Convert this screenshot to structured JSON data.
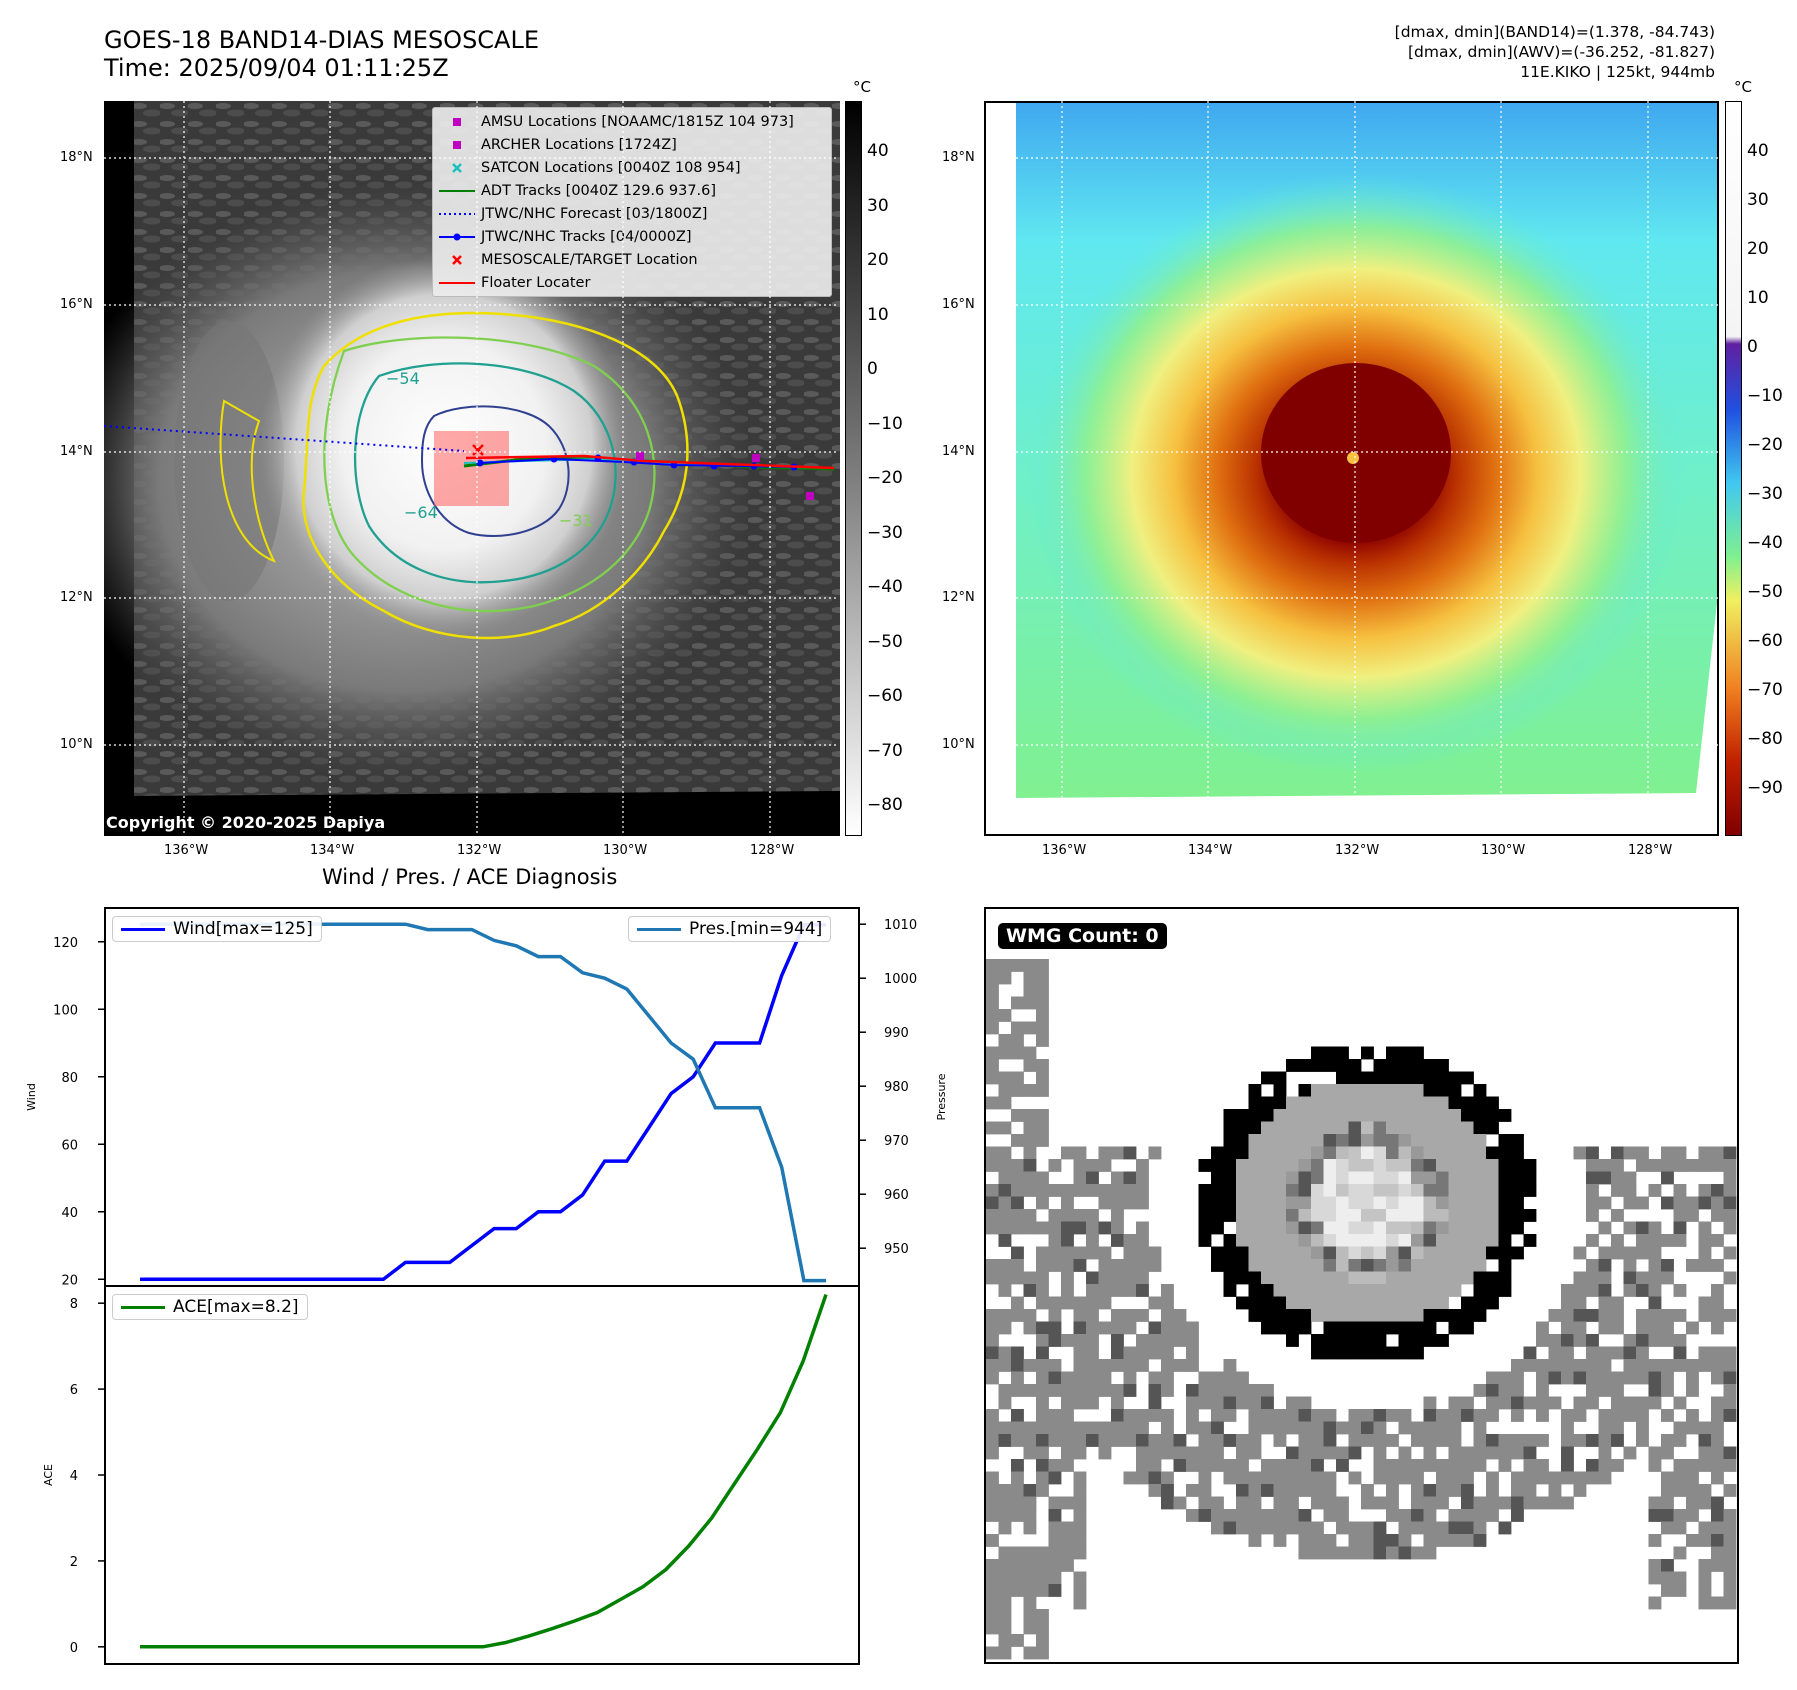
{
  "header": {
    "title_line1": "GOES-18 BAND14-DIAS MESOSCALE",
    "title_line2": "Time: 2025/09/04 01:11:25Z",
    "right_line1": "[dmax, dmin](BAND14)=(1.378, -84.743)",
    "right_line2": "[dmax, dmin](AWV)=(-36.252, -81.827)",
    "right_line3": "11E.KIKO | 125kt, 944mb"
  },
  "map_axes": {
    "lat_labels": [
      "18°N",
      "16°N",
      "14°N",
      "12°N",
      "10°N"
    ],
    "lon_labels": [
      "136°W",
      "134°W",
      "132°W",
      "130°W",
      "128°W"
    ]
  },
  "ir_panel": {
    "colorbar_unit": "°C",
    "colorbar_ticks": [
      "40",
      "30",
      "20",
      "10",
      "0",
      "−10",
      "−20",
      "−30",
      "−40",
      "−50",
      "−60",
      "−70",
      "−80"
    ],
    "copyright": "Copyright © 2020-2025 Dapiya",
    "contour_labels": [
      "−54",
      "−64",
      "−31"
    ],
    "legend": [
      {
        "label": "AMSU Locations [NOAAMC/1815Z 104 973]",
        "symbol": "square",
        "color": "#c000c0"
      },
      {
        "label": "ARCHER Locations [1724Z]",
        "symbol": "square",
        "color": "#c000c0"
      },
      {
        "label": "SATCON Locations [0040Z 108 954]",
        "symbol": "x",
        "color": "#18c0c0"
      },
      {
        "label": "ADT Tracks [0040Z 129.6 937.6]",
        "symbol": "line",
        "color": "#008000"
      },
      {
        "label": "JTWC/NHC Forecast [03/1800Z]",
        "symbol": "dotted",
        "color": "#0000ff"
      },
      {
        "label": "JTWC/NHC Tracks [04/0000Z]",
        "symbol": "dotline",
        "color": "#0000ff"
      },
      {
        "label": "MESOSCALE/TARGET Location",
        "symbol": "x",
        "color": "#ff0000"
      },
      {
        "label": "Floater Locater",
        "symbol": "line",
        "color": "#ff0000"
      }
    ]
  },
  "awv_panel": {
    "colorbar_unit": "°C",
    "colorbar_ticks": [
      "40",
      "30",
      "20",
      "10",
      "0",
      "−10",
      "−20",
      "−30",
      "−40",
      "−50",
      "−60",
      "−70",
      "−80",
      "−90"
    ]
  },
  "diagnosis": {
    "title": "Wind / Pres. / ACE Diagnosis",
    "wind_label": "Wind",
    "pressure_label": "Pressure",
    "ace_label": "ACE",
    "wind_legend": "Wind[max=125]",
    "pres_legend": "Pres.[min=944]",
    "ace_legend": "ACE[max=8.2]"
  },
  "wmg_panel": {
    "badge": "WMG Count: 0"
  },
  "chart_data": [
    {
      "type": "line",
      "title": "Wind / Pres. / ACE Diagnosis",
      "x": [
        0,
        1,
        2,
        3,
        4,
        5,
        6,
        7,
        8,
        9,
        10,
        11,
        12,
        13,
        14,
        15,
        16,
        17,
        18,
        19,
        20,
        21,
        22,
        23,
        24,
        25,
        26,
        27,
        28,
        29,
        30,
        31
      ],
      "series": [
        {
          "name": "Wind[max=125]",
          "axis": "left",
          "color": "#0000ff",
          "values": [
            20,
            20,
            20,
            20,
            20,
            20,
            20,
            20,
            20,
            20,
            20,
            20,
            25,
            25,
            25,
            30,
            35,
            35,
            40,
            40,
            45,
            55,
            55,
            65,
            75,
            80,
            90,
            90,
            90,
            110,
            125,
            125
          ]
        },
        {
          "name": "Pres.[min=944]",
          "axis": "right",
          "color": "#1f77b4",
          "values": [
            1010,
            1010,
            1010,
            1010,
            1010,
            1010,
            1010,
            1010,
            1010,
            1010,
            1010,
            1010,
            1010,
            1009,
            1009,
            1009,
            1007,
            1006,
            1004,
            1004,
            1001,
            1000,
            998,
            993,
            988,
            985,
            976,
            976,
            976,
            965,
            944,
            944
          ]
        }
      ],
      "ylabel": "Wind",
      "ylim": [
        18,
        130
      ],
      "ylabel_right": "Pressure",
      "ylim_right": [
        943,
        1013
      ],
      "yticks": [
        20,
        40,
        60,
        80,
        100,
        120
      ],
      "yticks_right": [
        950,
        960,
        970,
        980,
        990,
        1000,
        1010
      ]
    },
    {
      "type": "line",
      "x": [
        0,
        1,
        2,
        3,
        4,
        5,
        6,
        7,
        8,
        9,
        10,
        11,
        12,
        13,
        14,
        15,
        16,
        17,
        18,
        19,
        20,
        21,
        22,
        23,
        24,
        25,
        26,
        27,
        28,
        29,
        30
      ],
      "series": [
        {
          "name": "ACE[max=8.2]",
          "color": "#008000",
          "values": [
            0,
            0,
            0,
            0,
            0,
            0,
            0,
            0,
            0,
            0,
            0,
            0,
            0,
            0,
            0,
            0,
            0.1,
            0.25,
            0.42,
            0.6,
            0.8,
            1.1,
            1.4,
            1.8,
            2.35,
            3.0,
            3.8,
            4.6,
            5.45,
            6.65,
            8.2
          ]
        }
      ],
      "ylabel": "ACE",
      "ylim": [
        -0.4,
        8.4
      ],
      "yticks": [
        0,
        2,
        4,
        6,
        8
      ]
    }
  ]
}
